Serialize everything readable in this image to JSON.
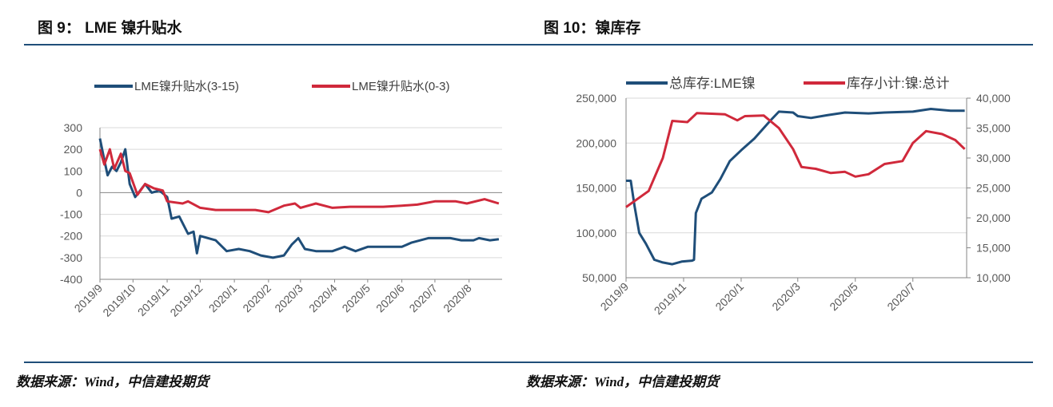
{
  "header": {
    "left_title": "图 9： LME 镍升贴水",
    "right_title": "图 10：镍库存"
  },
  "footer": {
    "left_source": "数据来源：Wind，中信建投期货",
    "right_source": "数据来源：Wind，中信建投期货"
  },
  "colors": {
    "blue": "#1f4e79",
    "red": "#d0293b",
    "rule": "#1f4e79"
  },
  "chart_data": [
    {
      "type": "line",
      "title": "",
      "legend_position": "top",
      "grid": true,
      "ylim": [
        -400,
        300
      ],
      "yticks": [
        "300",
        "200",
        "100",
        "0",
        "-100",
        "-200",
        "-300",
        "-400"
      ],
      "xticks": [
        "2019/9",
        "2019/10",
        "2019/11",
        "2019/12",
        "2020/1",
        "2020/2",
        "2020/3",
        "2020/4",
        "2020/5",
        "2020/6",
        "2020/7",
        "2020/8"
      ],
      "series": [
        {
          "name": "LME镍升贴水(3-15)",
          "color": "#1f4e79",
          "points": [
            [
              "2019-09-01",
              250
            ],
            [
              "2019-09-05",
              150
            ],
            [
              "2019-09-08",
              80
            ],
            [
              "2019-09-12",
              120
            ],
            [
              "2019-09-16",
              100
            ],
            [
              "2019-09-20",
              140
            ],
            [
              "2019-09-24",
              200
            ],
            [
              "2019-09-28",
              40
            ],
            [
              "2019-10-03",
              -20
            ],
            [
              "2019-10-12",
              40
            ],
            [
              "2019-10-18",
              0
            ],
            [
              "2019-10-25",
              10
            ],
            [
              "2019-11-01",
              -20
            ],
            [
              "2019-11-05",
              -120
            ],
            [
              "2019-11-12",
              -110
            ],
            [
              "2019-11-20",
              -190
            ],
            [
              "2019-11-25",
              -180
            ],
            [
              "2019-11-28",
              -280
            ],
            [
              "2019-12-01",
              -200
            ],
            [
              "2019-12-15",
              -220
            ],
            [
              "2019-12-25",
              -270
            ],
            [
              "2020-01-05",
              -260
            ],
            [
              "2020-01-15",
              -270
            ],
            [
              "2020-01-25",
              -290
            ],
            [
              "2020-02-05",
              -300
            ],
            [
              "2020-02-15",
              -290
            ],
            [
              "2020-02-22",
              -240
            ],
            [
              "2020-02-28",
              -210
            ],
            [
              "2020-03-05",
              -260
            ],
            [
              "2020-03-15",
              -270
            ],
            [
              "2020-03-30",
              -270
            ],
            [
              "2020-04-10",
              -250
            ],
            [
              "2020-04-20",
              -270
            ],
            [
              "2020-05-01",
              -250
            ],
            [
              "2020-05-20",
              -250
            ],
            [
              "2020-06-01",
              -250
            ],
            [
              "2020-06-10",
              -230
            ],
            [
              "2020-06-25",
              -210
            ],
            [
              "2020-07-15",
              -210
            ],
            [
              "2020-07-25",
              -220
            ],
            [
              "2020-08-05",
              -220
            ],
            [
              "2020-08-10",
              -210
            ],
            [
              "2020-08-20",
              -220
            ],
            [
              "2020-08-28",
              -215
            ]
          ]
        },
        {
          "name": "LME镍升贴水(0-3)",
          "color": "#d0293b",
          "points": [
            [
              "2019-09-01",
              200
            ],
            [
              "2019-09-05",
              130
            ],
            [
              "2019-09-10",
              200
            ],
            [
              "2019-09-14",
              110
            ],
            [
              "2019-09-20",
              180
            ],
            [
              "2019-09-24",
              100
            ],
            [
              "2019-09-28",
              90
            ],
            [
              "2019-10-05",
              -10
            ],
            [
              "2019-10-12",
              40
            ],
            [
              "2019-10-20",
              20
            ],
            [
              "2019-10-28",
              10
            ],
            [
              "2019-11-01",
              -40
            ],
            [
              "2019-11-15",
              -50
            ],
            [
              "2019-11-20",
              -40
            ],
            [
              "2019-12-01",
              -70
            ],
            [
              "2019-12-15",
              -80
            ],
            [
              "2020-01-01",
              -80
            ],
            [
              "2020-01-20",
              -80
            ],
            [
              "2020-02-01",
              -90
            ],
            [
              "2020-02-15",
              -60
            ],
            [
              "2020-02-25",
              -50
            ],
            [
              "2020-03-01",
              -70
            ],
            [
              "2020-03-15",
              -50
            ],
            [
              "2020-03-30",
              -70
            ],
            [
              "2020-04-15",
              -65
            ],
            [
              "2020-05-15",
              -65
            ],
            [
              "2020-06-01",
              -60
            ],
            [
              "2020-06-15",
              -55
            ],
            [
              "2020-07-01",
              -40
            ],
            [
              "2020-07-20",
              -40
            ],
            [
              "2020-07-30",
              -50
            ],
            [
              "2020-08-15",
              -30
            ],
            [
              "2020-08-28",
              -50
            ]
          ]
        }
      ]
    },
    {
      "type": "line",
      "title": "",
      "legend_position": "top",
      "grid": true,
      "ylim_left": [
        50000,
        250000
      ],
      "ylim_right": [
        10000,
        40000
      ],
      "yticks_left": [
        "250,000",
        "200,000",
        "150,000",
        "100,000",
        "50,000"
      ],
      "yticks_right": [
        "40,000",
        "35,000",
        "30,000",
        "25,000",
        "20,000",
        "15,000",
        "10,000"
      ],
      "xticks": [
        "2019/9",
        "2019/11",
        "2020/1",
        "2020/3",
        "2020/5",
        "2020/7"
      ],
      "series": [
        {
          "name": "总库存:LME镍",
          "axis": "left",
          "color": "#1f4e79",
          "points": [
            [
              "2019-09-01",
              158000
            ],
            [
              "2019-09-06",
              158000
            ],
            [
              "2019-09-10",
              130000
            ],
            [
              "2019-09-15",
              100000
            ],
            [
              "2019-09-22",
              88000
            ],
            [
              "2019-10-01",
              70000
            ],
            [
              "2019-10-10",
              67000
            ],
            [
              "2019-10-20",
              65000
            ],
            [
              "2019-10-30",
              68000
            ],
            [
              "2019-11-10",
              69000
            ],
            [
              "2019-11-12",
              70000
            ],
            [
              "2019-11-14",
              122000
            ],
            [
              "2019-11-20",
              138000
            ],
            [
              "2019-12-01",
              145000
            ],
            [
              "2019-12-10",
              160000
            ],
            [
              "2019-12-20",
              180000
            ],
            [
              "2020-01-01",
              192000
            ],
            [
              "2020-01-15",
              205000
            ],
            [
              "2020-02-01",
              225000
            ],
            [
              "2020-02-10",
              235000
            ],
            [
              "2020-02-25",
              234000
            ],
            [
              "2020-03-01",
              230000
            ],
            [
              "2020-03-15",
              228000
            ],
            [
              "2020-04-01",
              231000
            ],
            [
              "2020-04-20",
              234000
            ],
            [
              "2020-05-15",
              233000
            ],
            [
              "2020-06-01",
              234000
            ],
            [
              "2020-07-01",
              235000
            ],
            [
              "2020-07-20",
              238000
            ],
            [
              "2020-08-10",
              236000
            ],
            [
              "2020-08-25",
              236000
            ]
          ]
        },
        {
          "name": "库存小计:镍:总计",
          "axis": "right",
          "color": "#d0293b",
          "points": [
            [
              "2019-09-01",
              21800
            ],
            [
              "2019-09-25",
              24500
            ],
            [
              "2019-10-10",
              30000
            ],
            [
              "2019-10-20",
              36200
            ],
            [
              "2019-11-05",
              36000
            ],
            [
              "2019-11-15",
              37500
            ],
            [
              "2019-12-01",
              37400
            ],
            [
              "2019-12-15",
              37300
            ],
            [
              "2019-12-28",
              36300
            ],
            [
              "2020-01-05",
              37000
            ],
            [
              "2020-01-25",
              37100
            ],
            [
              "2020-02-10",
              35000
            ],
            [
              "2020-02-25",
              31500
            ],
            [
              "2020-03-05",
              28500
            ],
            [
              "2020-03-20",
              28200
            ],
            [
              "2020-04-05",
              27500
            ],
            [
              "2020-04-20",
              27700
            ],
            [
              "2020-05-01",
              26900
            ],
            [
              "2020-05-15",
              27300
            ],
            [
              "2020-06-01",
              29000
            ],
            [
              "2020-06-20",
              29500
            ],
            [
              "2020-07-01",
              32500
            ],
            [
              "2020-07-15",
              34500
            ],
            [
              "2020-08-01",
              34000
            ],
            [
              "2020-08-15",
              33000
            ],
            [
              "2020-08-25",
              31500
            ]
          ]
        }
      ]
    }
  ]
}
